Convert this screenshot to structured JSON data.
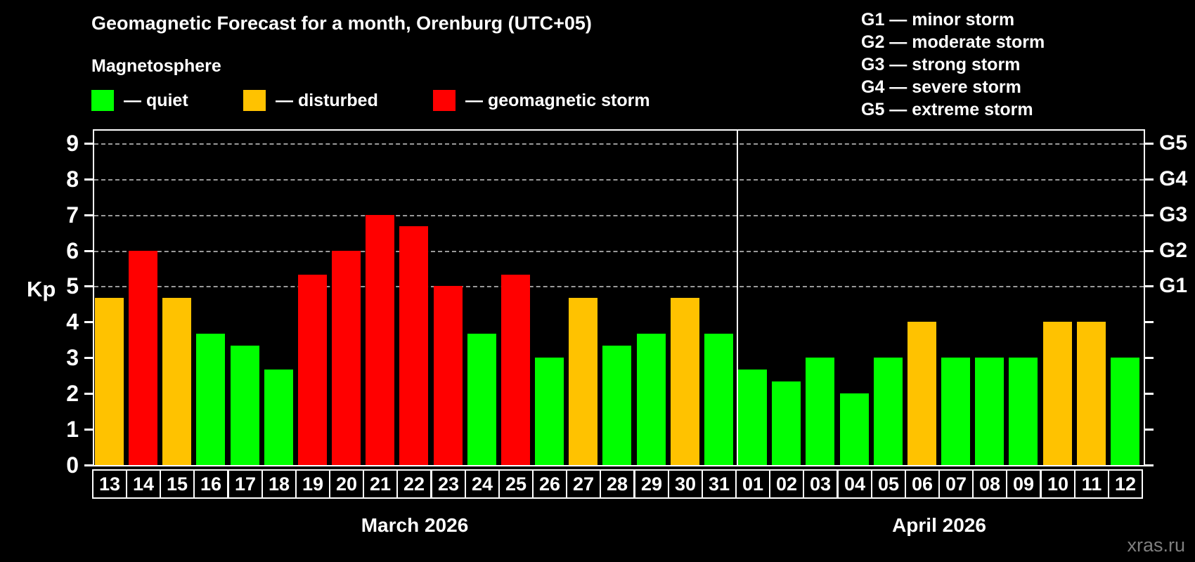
{
  "title": "Geomagnetic Forecast for a month, Orenburg (UTC+05)",
  "subtitle": "Magnetosphere",
  "legend": {
    "items": [
      {
        "name": "quiet",
        "label": "— quiet",
        "color": "#00ff00"
      },
      {
        "name": "disturbed",
        "label": "— disturbed",
        "color": "#ffc200"
      },
      {
        "name": "storm",
        "label": "— geomagnetic storm",
        "color": "#ff0000"
      }
    ]
  },
  "g_legend": {
    "items": [
      {
        "text": "G1 — minor storm"
      },
      {
        "text": "G2 — moderate storm"
      },
      {
        "text": "G3 — strong storm"
      },
      {
        "text": "G4 — severe storm"
      },
      {
        "text": "G5 — extreme storm"
      }
    ]
  },
  "watermark": "xras.ru",
  "chart_data": {
    "type": "bar",
    "title": "Geomagnetic Forecast for a month, Orenburg (UTC+05)",
    "ylabel": "Kp",
    "ylim": [
      0,
      9
    ],
    "yticks": [
      0,
      1,
      2,
      3,
      4,
      5,
      6,
      7,
      8,
      9
    ],
    "gridlines_at": [
      5,
      6,
      7,
      8,
      9
    ],
    "grid": "horizontal dashed lines only at storm levels G1–G5",
    "legend_position": "top-left",
    "right_axis_labels": [
      {
        "value": 5,
        "label": "G1"
      },
      {
        "value": 6,
        "label": "G2"
      },
      {
        "value": 7,
        "label": "G3"
      },
      {
        "value": 8,
        "label": "G4"
      },
      {
        "value": 9,
        "label": "G5"
      }
    ],
    "categories": [
      "13",
      "14",
      "15",
      "16",
      "17",
      "18",
      "19",
      "20",
      "21",
      "22",
      "23",
      "24",
      "25",
      "26",
      "27",
      "28",
      "29",
      "30",
      "31",
      "01",
      "02",
      "03",
      "04",
      "05",
      "06",
      "07",
      "08",
      "09",
      "10",
      "11",
      "12"
    ],
    "values": [
      4.67,
      6,
      4.67,
      3.67,
      3.33,
      2.67,
      5.33,
      6,
      7,
      6.67,
      5,
      3.67,
      5.33,
      3,
      4.67,
      3.33,
      3.67,
      4.67,
      3.67,
      2.67,
      2.33,
      3,
      2,
      3,
      4,
      3,
      3,
      3,
      4,
      4,
      3
    ],
    "statuses": [
      "disturbed",
      "storm",
      "disturbed",
      "quiet",
      "quiet",
      "quiet",
      "storm",
      "storm",
      "storm",
      "storm",
      "storm",
      "quiet",
      "storm",
      "quiet",
      "disturbed",
      "quiet",
      "quiet",
      "disturbed",
      "quiet",
      "quiet",
      "quiet",
      "quiet",
      "quiet",
      "quiet",
      "disturbed",
      "quiet",
      "quiet",
      "quiet",
      "disturbed",
      "disturbed",
      "quiet"
    ],
    "colors": {
      "quiet": "#00ff00",
      "disturbed": "#ffc200",
      "storm": "#ff0000"
    },
    "months": [
      {
        "label": "March 2026",
        "days": 19
      },
      {
        "label": "April 2026",
        "days": 12
      }
    ]
  }
}
